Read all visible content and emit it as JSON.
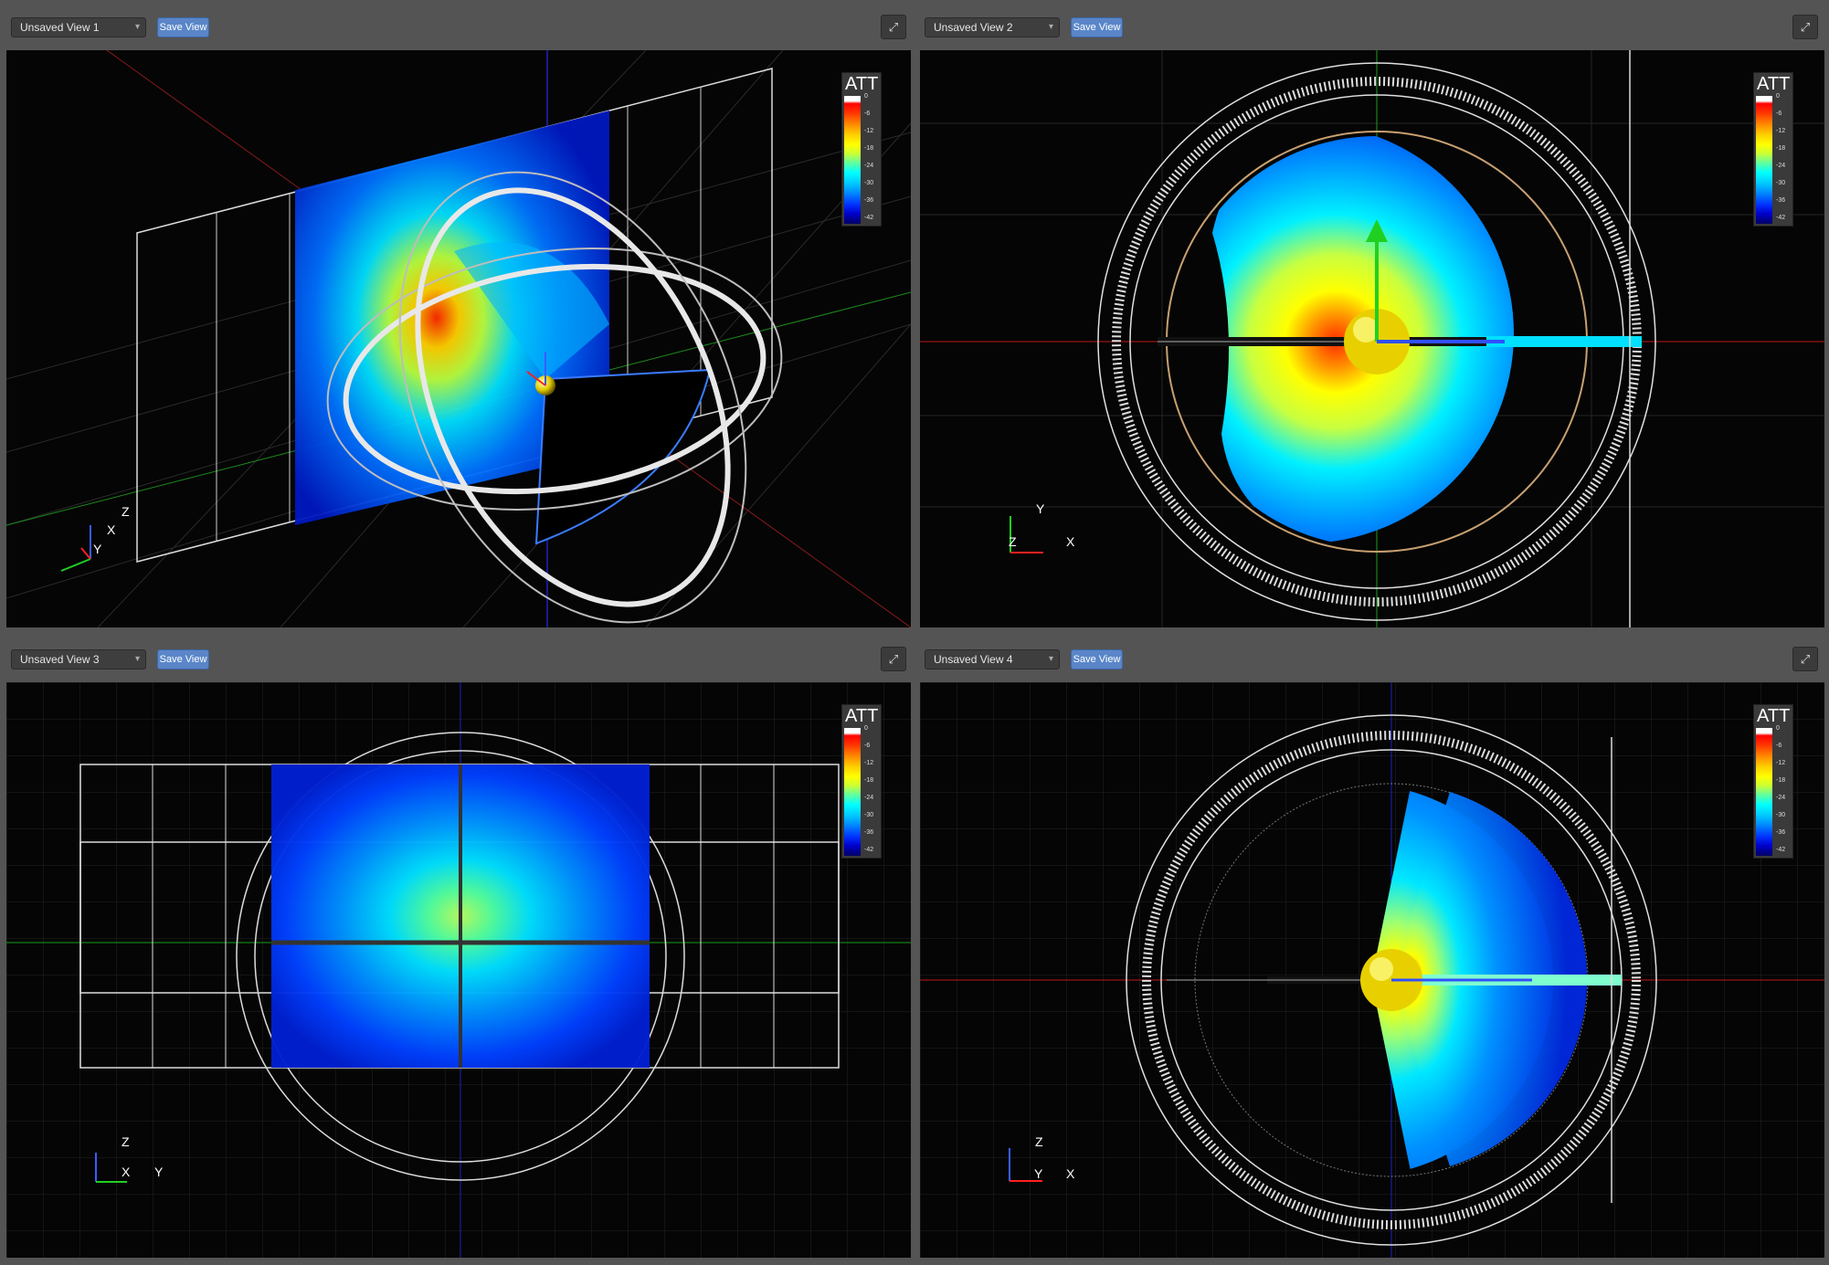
{
  "views": [
    {
      "title": "Unsaved View 1",
      "save_label": "Save View"
    },
    {
      "title": "Unsaved View 2",
      "save_label": "Save View"
    },
    {
      "title": "Unsaved View 3",
      "save_label": "Save View"
    },
    {
      "title": "Unsaved View 4",
      "save_label": "Save View"
    }
  ],
  "legend": {
    "title": "ATT",
    "ticks": [
      "0",
      "-6",
      "-12",
      "-18",
      "-24",
      "-30",
      "-36",
      "-42"
    ]
  },
  "axes": {
    "v1": [
      "Z",
      "X",
      "Y"
    ],
    "v2": [
      "Y",
      "Z",
      "X"
    ],
    "v3": [
      "Z",
      "X",
      "Y"
    ],
    "v4": [
      "Z",
      "Y",
      "X"
    ]
  },
  "icons": {
    "maximize": "expand-arrows-icon",
    "dropdown": "chevron-down-icon"
  },
  "colors": {
    "accent": "#5a86c9",
    "viewport_bg": "#050505",
    "panel_bg": "#545454"
  }
}
